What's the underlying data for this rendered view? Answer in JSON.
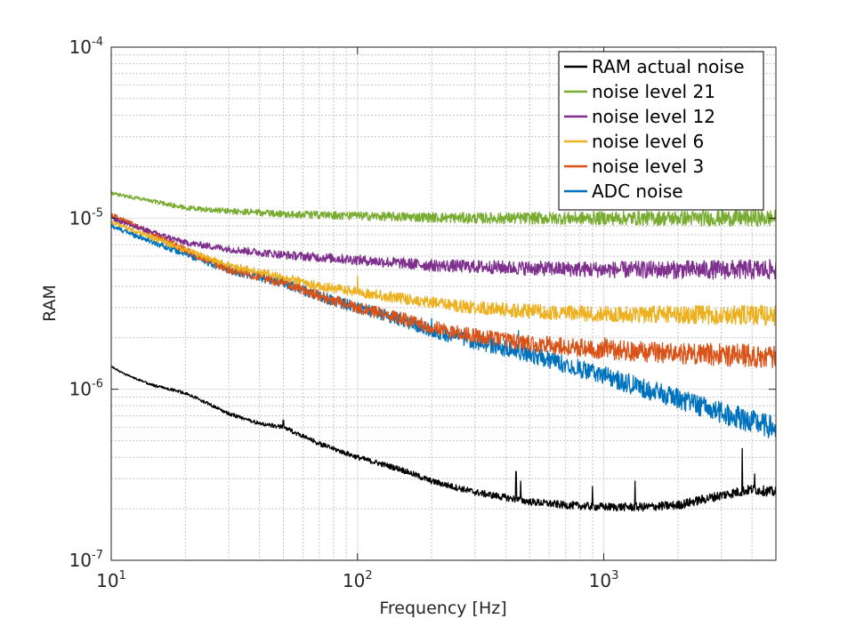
{
  "chart_data": {
    "type": "line",
    "title": "",
    "xlabel": "Frequency [Hz]",
    "ylabel": "RAM",
    "xscale": "log",
    "yscale": "log",
    "xlim": [
      10,
      5000
    ],
    "ylim": [
      1e-07,
      0.0001
    ],
    "grid": true,
    "legend_position": "top-right",
    "x_ticks": [
      {
        "base": "10",
        "exp": "1",
        "value": 10
      },
      {
        "base": "10",
        "exp": "2",
        "value": 100
      },
      {
        "base": "10",
        "exp": "3",
        "value": 1000
      }
    ],
    "y_ticks": [
      {
        "base": "10",
        "exp": "-7",
        "value": 1e-07
      },
      {
        "base": "10",
        "exp": "-6",
        "value": 1e-06
      },
      {
        "base": "10",
        "exp": "-5",
        "value": 1e-05
      },
      {
        "base": "10",
        "exp": "-4",
        "value": 0.0001
      }
    ],
    "series": [
      {
        "name": "RAM actual noise",
        "color": "#000000",
        "noise": 0.015,
        "points": [
          [
            10,
            1.35e-06
          ],
          [
            12,
            1.18e-06
          ],
          [
            15,
            1.05e-06
          ],
          [
            20,
            9.5e-07
          ],
          [
            25,
            8.2e-07
          ],
          [
            30,
            7.2e-07
          ],
          [
            40,
            6.3e-07
          ],
          [
            50,
            6e-07
          ],
          [
            70,
            4.8e-07
          ],
          [
            100,
            4e-07
          ],
          [
            150,
            3.4e-07
          ],
          [
            200,
            2.9e-07
          ],
          [
            300,
            2.5e-07
          ],
          [
            500,
            2.2e-07
          ],
          [
            700,
            2.1e-07
          ],
          [
            1000,
            2.05e-07
          ],
          [
            1500,
            2.05e-07
          ],
          [
            2000,
            2.1e-07
          ],
          [
            3000,
            2.4e-07
          ],
          [
            4000,
            2.6e-07
          ],
          [
            5000,
            2.5e-07
          ]
        ],
        "spikes": [
          [
            50,
            6.6e-07
          ],
          [
            440,
            3.3e-07
          ],
          [
            460,
            2.9e-07
          ],
          [
            900,
            2.7e-07
          ],
          [
            1340,
            2.9e-07
          ],
          [
            3650,
            4.5e-07
          ],
          [
            4100,
            3.2e-07
          ]
        ]
      },
      {
        "name": "noise level 21",
        "color": "#77ac30",
        "noise": 0.025,
        "points": [
          [
            10,
            1.4e-05
          ],
          [
            15,
            1.25e-05
          ],
          [
            20,
            1.15e-05
          ],
          [
            30,
            1.1e-05
          ],
          [
            50,
            1.06e-05
          ],
          [
            100,
            1.03e-05
          ],
          [
            300,
            1e-05
          ],
          [
            1000,
            1e-05
          ],
          [
            5000,
            1e-05
          ]
        ],
        "spikes": []
      },
      {
        "name": "noise level 12",
        "color": "#7e2f8e",
        "noise": 0.03,
        "points": [
          [
            10,
            1e-05
          ],
          [
            15,
            8.2e-06
          ],
          [
            20,
            7.2e-06
          ],
          [
            30,
            6.6e-06
          ],
          [
            50,
            6.1e-06
          ],
          [
            100,
            5.7e-06
          ],
          [
            200,
            5.3e-06
          ],
          [
            500,
            5.1e-06
          ],
          [
            1000,
            5e-06
          ],
          [
            5000,
            5e-06
          ]
        ],
        "spikes": []
      },
      {
        "name": "noise level 6",
        "color": "#edb120",
        "noise": 0.03,
        "points": [
          [
            10,
            9.5e-06
          ],
          [
            15,
            7.6e-06
          ],
          [
            20,
            6.5e-06
          ],
          [
            30,
            5.3e-06
          ],
          [
            50,
            4.5e-06
          ],
          [
            70,
            4e-06
          ],
          [
            100,
            3.7e-06
          ],
          [
            150,
            3.4e-06
          ],
          [
            200,
            3.2e-06
          ],
          [
            300,
            3e-06
          ],
          [
            500,
            2.85e-06
          ],
          [
            1000,
            2.75e-06
          ],
          [
            5000,
            2.7e-06
          ]
        ],
        "spikes": [
          [
            100,
            4.6e-06
          ]
        ]
      },
      {
        "name": "noise level 3",
        "color": "#d95319",
        "noise": 0.035,
        "points": [
          [
            10,
            1.05e-05
          ],
          [
            15,
            8e-06
          ],
          [
            20,
            6.5e-06
          ],
          [
            30,
            5e-06
          ],
          [
            50,
            4.2e-06
          ],
          [
            70,
            3.5e-06
          ],
          [
            100,
            3e-06
          ],
          [
            150,
            2.6e-06
          ],
          [
            200,
            2.3e-06
          ],
          [
            300,
            2.05e-06
          ],
          [
            500,
            1.85e-06
          ],
          [
            1000,
            1.7e-06
          ],
          [
            2000,
            1.62e-06
          ],
          [
            5000,
            1.55e-06
          ]
        ],
        "spikes": [
          [
            1010,
            2e-06
          ],
          [
            1030,
            1.95e-06
          ]
        ]
      },
      {
        "name": "ADC noise",
        "color": "#0072bd",
        "noise": 0.035,
        "points": [
          [
            10,
            9e-06
          ],
          [
            15,
            7.2e-06
          ],
          [
            20,
            6.2e-06
          ],
          [
            30,
            5e-06
          ],
          [
            50,
            4.2e-06
          ],
          [
            70,
            3.5e-06
          ],
          [
            100,
            3e-06
          ],
          [
            150,
            2.55e-06
          ],
          [
            200,
            2.2e-06
          ],
          [
            300,
            1.9e-06
          ],
          [
            500,
            1.6e-06
          ],
          [
            700,
            1.4e-06
          ],
          [
            1000,
            1.2e-06
          ],
          [
            1500,
            1e-06
          ],
          [
            2000,
            8.8e-07
          ],
          [
            3000,
            7.3e-07
          ],
          [
            5000,
            5.9e-07
          ]
        ],
        "spikes": [
          [
            200,
            2.6e-06
          ],
          [
            450,
            2.2e-06
          ]
        ]
      }
    ]
  }
}
